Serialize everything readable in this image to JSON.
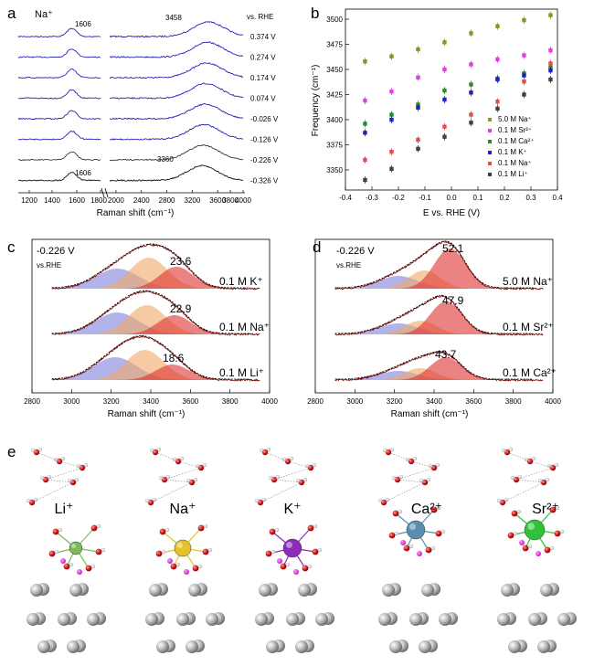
{
  "panels": {
    "a": {
      "label": "a",
      "ion": "Na⁺",
      "vs": "vs. RHE",
      "peak_low_top": "1606",
      "peak_high_top": "3458",
      "peak_low_bottom": "1606",
      "peak_high_bottom": "3360",
      "potentials": [
        "0.374 V",
        "0.274 V",
        "0.174 V",
        "0.074 V",
        "-0.026 V",
        "-0.126 V",
        "-0.226 V",
        "-0.326 V"
      ],
      "x_ticks_left": [
        "1200",
        "1400",
        "1600",
        "1800"
      ],
      "x_ticks_right": [
        "2000",
        "2400",
        "2800",
        "3200",
        "3600",
        "3800",
        "4000"
      ],
      "x_tick_right_values": [
        2000,
        2400,
        2800,
        3200,
        3600,
        3800,
        4000
      ],
      "xlabel": "Raman shift (cm⁻¹)"
    },
    "b": {
      "label": "b",
      "chart_data": {
        "type": "scatter",
        "title": "",
        "xlabel": "E vs. RHE (V)",
        "ylabel": "Frequency (cm⁻¹)",
        "xlim": [
          -0.4,
          0.4
        ],
        "ylim": [
          3330,
          3510
        ],
        "x_ticks": [
          -0.4,
          -0.3,
          -0.2,
          -0.1,
          0.0,
          0.1,
          0.2,
          0.3,
          0.4
        ],
        "x_tick_labels": [
          "-0.4",
          "-0.3",
          "-0.2",
          "-0.1",
          "0.0",
          "0.1",
          "0.2",
          "0.3",
          "0.4"
        ],
        "y_ticks": [
          3350,
          3375,
          3400,
          3425,
          3450,
          3475,
          3500
        ],
        "y_tick_labels": [
          "3350",
          "3375",
          "3400",
          "3425",
          "3450",
          "3475",
          "3500"
        ],
        "x": [
          -0.326,
          -0.226,
          -0.126,
          -0.026,
          0.074,
          0.174,
          0.274,
          0.374
        ],
        "legend_position": "bottom-right",
        "series": [
          {
            "name": "5.0 M Na⁺",
            "color": "#7a9a2a",
            "values": [
              3458,
              3463,
              3470,
              3477,
              3486,
              3493,
              3499,
              3504
            ]
          },
          {
            "name": "0.1 M Sr²⁺",
            "color": "#e040e0",
            "values": [
              3419,
              3428,
              3442,
              3450,
              3455,
              3460,
              3464,
              3469
            ]
          },
          {
            "name": "0.1 M Ca²⁺",
            "color": "#2a8a2a",
            "values": [
              3396,
              3405,
              3415,
              3429,
              3435,
              3441,
              3446,
              3452
            ]
          },
          {
            "name": "0.1 M K⁺",
            "color": "#2020c0",
            "values": [
              3387,
              3400,
              3412,
              3420,
              3427,
              3440,
              3444,
              3449
            ]
          },
          {
            "name": "0.1 M Na⁺",
            "color": "#e05050",
            "values": [
              3360,
              3368,
              3380,
              3393,
              3405,
              3418,
              3438,
              3456
            ]
          },
          {
            "name": "0.1 M Li⁺",
            "color": "#404040",
            "values": [
              3340,
              3351,
              3371,
              3383,
              3397,
              3411,
              3425,
              3440
            ]
          }
        ]
      }
    },
    "c": {
      "label": "c",
      "potential": "-0.226 V",
      "vs": "vs.RHE",
      "xlabel": "Raman shift (cm⁻¹)",
      "x_ticks": [
        "2800",
        "3000",
        "3200",
        "3400",
        "3600",
        "3800",
        "4000"
      ],
      "x_tick_values": [
        2800,
        3000,
        3200,
        3400,
        3600,
        3800,
        4000
      ],
      "rows": [
        {
          "value": "23.6",
          "label": "0.1 M K⁺"
        },
        {
          "value": "22.9",
          "label": "0.1 M Na⁺"
        },
        {
          "value": "18.6",
          "label": "0.1 M Li⁺"
        }
      ]
    },
    "d": {
      "label": "d",
      "potential": "-0.226 V",
      "vs": "vs.RHE",
      "xlabel": "Raman shift (cm⁻¹)",
      "x_ticks": [
        "2800",
        "3000",
        "3200",
        "3400",
        "3600",
        "3800",
        "4000"
      ],
      "x_tick_values": [
        2800,
        3000,
        3200,
        3400,
        3600,
        3800,
        4000
      ],
      "rows": [
        {
          "value": "52.1",
          "label": "5.0 M Na⁺"
        },
        {
          "value": "47.9",
          "label": "0.1 M Sr²⁺"
        },
        {
          "value": "43.7",
          "label": "0.1 M Ca²⁺"
        }
      ]
    },
    "e": {
      "label": "e",
      "cations": [
        {
          "name": "Li⁺",
          "color": "#7dbb5a"
        },
        {
          "name": "Na⁺",
          "color": "#e6c22a"
        },
        {
          "name": "K⁺",
          "color": "#8e2bb8"
        },
        {
          "name": "Ca²⁺",
          "color": "#5a8fb0"
        },
        {
          "name": "Sr²⁺",
          "color": "#2ec23a"
        }
      ]
    }
  }
}
